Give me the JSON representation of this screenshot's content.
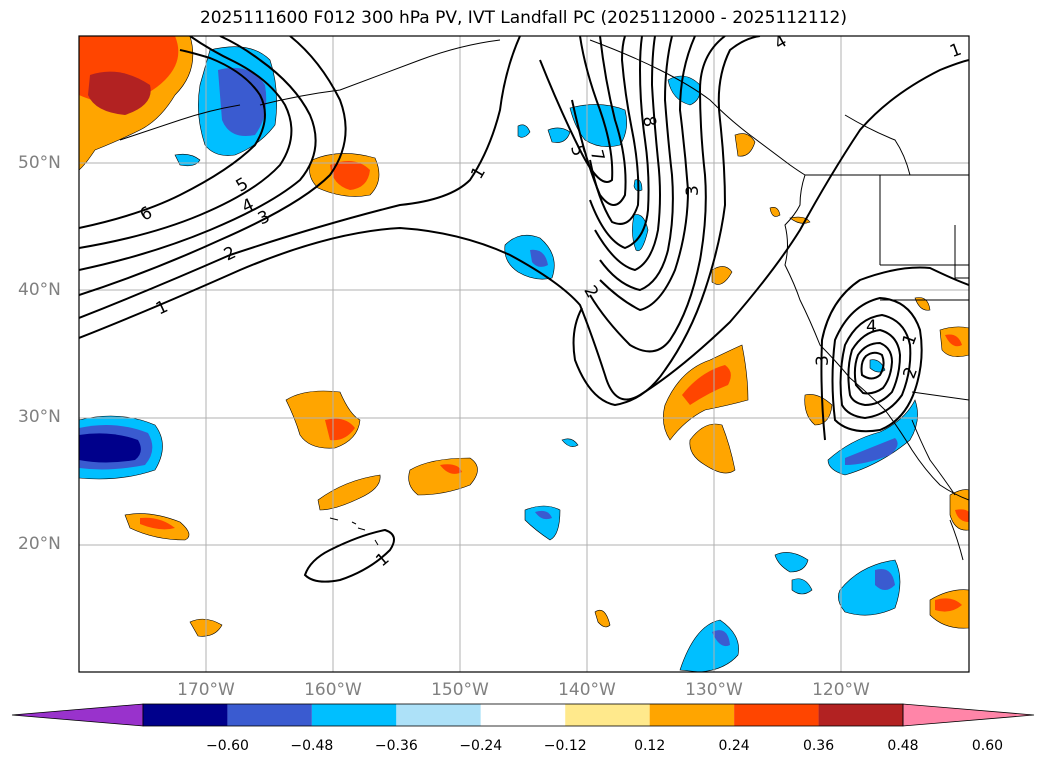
{
  "title": "2025111600 F012 300 hPa PV, IVT Landfall PC (2025112000 - 2025112112)",
  "lat_labels": [
    "50°N",
    "40°N",
    "30°N",
    "20°N"
  ],
  "lon_labels": [
    "170°W",
    "160°W",
    "150°W",
    "140°W",
    "130°W",
    "120°W"
  ],
  "colorbar": {
    "ticks": [
      "−0.60",
      "−0.48",
      "−0.36",
      "−0.24",
      "−0.12",
      "0.12",
      "0.24",
      "0.36",
      "0.48",
      "0.60"
    ],
    "colors": [
      "#9932CC",
      "#00008B",
      "#3A5BD0",
      "#00BFFF",
      "#ADE1F8",
      "#FFFFFF",
      "#FFE98C",
      "#FFA500",
      "#FF4500",
      "#B22222",
      "#FF85A8"
    ]
  },
  "contour_labels": [
    "6",
    "5",
    "4",
    "3",
    "2",
    "1",
    "1",
    "2",
    "5",
    "7",
    "8",
    "3",
    "4",
    "1",
    "3",
    "2",
    "1",
    "4",
    "1"
  ],
  "colors": {
    "gridline": "#b0b0b0",
    "contour": "#000000",
    "coast": "#000000"
  }
}
